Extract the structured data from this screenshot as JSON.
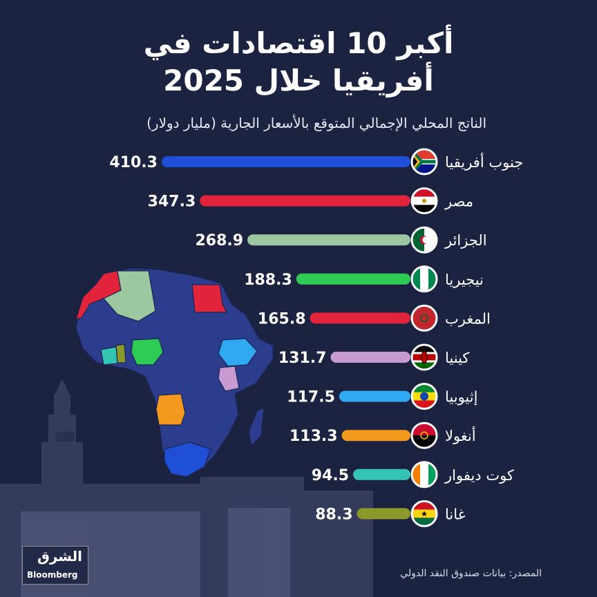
{
  "title_line1": "أكبر 10 اقتصادات في",
  "title_line2": "أفريقيا خلال 2025",
  "subtitle": "الناتج المحلي الإجمالي المتوقع بالأسعار الجارية (مليار دولار)",
  "source": "المصدر: بيانات صندوق النقد الدولي",
  "logo": {
    "arabic": "الشرق",
    "english": "Bloomberg"
  },
  "chart_data": {
    "type": "bar",
    "orientation": "horizontal",
    "categories": [
      "جنوب أفريقيا",
      "مصر",
      "الجزائر",
      "نيجيريا",
      "المغرب",
      "كينيا",
      "إثيوبيا",
      "أنغولا",
      "كوت ديفوار",
      "غانا"
    ],
    "values": [
      410.3,
      347.3,
      268.9,
      188.3,
      165.8,
      131.7,
      117.5,
      113.3,
      94.5,
      88.3
    ],
    "value_labels": [
      "410.3",
      "347.3",
      "268.9",
      "188.3",
      "165.8",
      "131.7",
      "117.5",
      "113.3",
      "94.5",
      "88.3"
    ],
    "colors": [
      "#1f4fd6",
      "#e1233b",
      "#9dc7a1",
      "#2ecc55",
      "#e1233b",
      "#c79ad1",
      "#2ea9f2",
      "#f39a1e",
      "#33c4b2",
      "#8c9a2c"
    ],
    "flag_icons": [
      "south-africa-flag-icon",
      "egypt-flag-icon",
      "algeria-flag-icon",
      "nigeria-flag-icon",
      "morocco-flag-icon",
      "kenya-flag-icon",
      "ethiopia-flag-icon",
      "angola-flag-icon",
      "cote-divoire-flag-icon",
      "ghana-flag-icon"
    ]
  },
  "map_colors": {
    "base": "#2b3d8c",
    "south_africa": "#1f4fd6",
    "egypt": "#e1233b",
    "algeria": "#9dc7a1",
    "nigeria": "#2ecc55",
    "morocco": "#e1233b",
    "kenya": "#c79ad1",
    "ethiopia": "#2ea9f2",
    "angola": "#f39a1e",
    "cote_divoire": "#33c4b2",
    "ghana": "#8c9a2c"
  }
}
